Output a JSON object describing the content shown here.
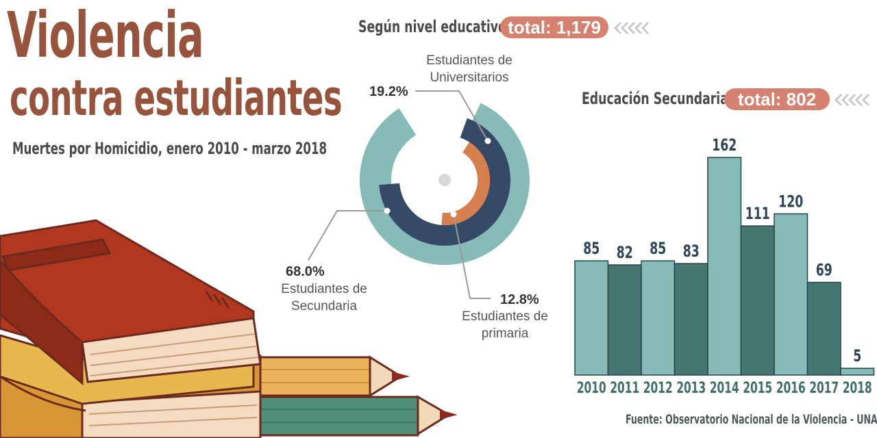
{
  "title_line1": "Violencia",
  "title_line2": "contra estudiantes",
  "subtitle": "Muertes por Homicidio, enero 2010 - marzo 2018",
  "donut_section": {
    "title": "Según nivel educativo",
    "total": "total: 1,179"
  },
  "bar_section": {
    "title": "Educación Secundaria",
    "total": "total: 802"
  },
  "source": "Fuente: Observatorio Nacional de la Violencia - UNAH",
  "colors": {
    "title": "#97533b",
    "pill": "#d6806f",
    "secundaria": "#87bbb8",
    "universitarios": "#354a66",
    "primaria": "#d6804f",
    "bar_light": "#87bbb8",
    "bar_dark": "#467670"
  },
  "chart_data": [
    {
      "type": "pie",
      "title": "Según nivel educativo",
      "total": 1179,
      "slices": [
        {
          "label_line1": "Estudiantes de",
          "label_line2": "Secundaria",
          "percent_label": "68.0%",
          "value": 68.0
        },
        {
          "label_line1": "Estudiantes de",
          "label_line2": "Universitarios",
          "percent_label": "19.2%",
          "value": 19.2
        },
        {
          "label_line1": "Estudiantes de",
          "label_line2": "primaria",
          "percent_label": "12.8%",
          "value": 12.8
        }
      ]
    },
    {
      "type": "bar",
      "title": "Educación Secundaria",
      "total": 802,
      "categories": [
        "2010",
        "2011",
        "2012",
        "2013",
        "2014",
        "2015",
        "2016",
        "2017",
        "2018"
      ],
      "values": [
        85,
        82,
        85,
        83,
        162,
        111,
        120,
        69,
        5
      ],
      "ylim": [
        0,
        162
      ],
      "grid": false
    }
  ]
}
